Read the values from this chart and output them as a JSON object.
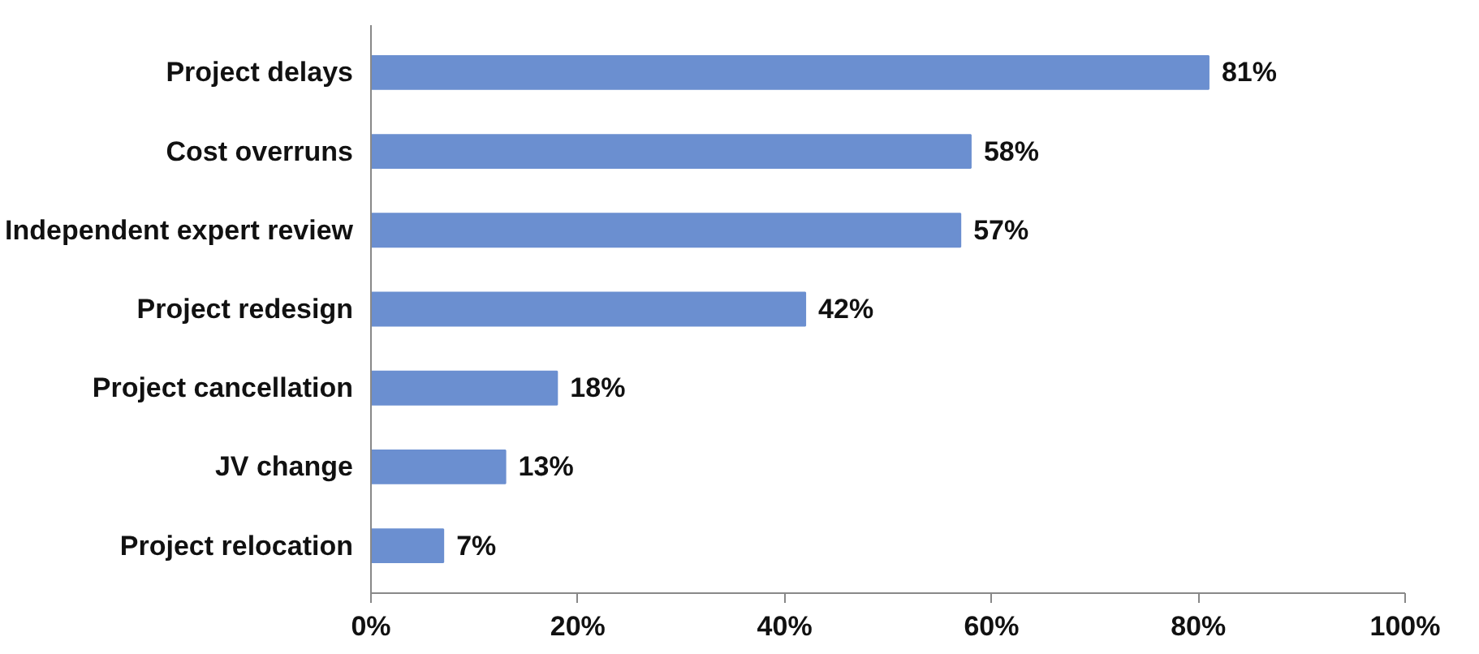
{
  "chart_data": {
    "type": "bar",
    "orientation": "horizontal",
    "categories": [
      "Project delays",
      "Cost overruns",
      "Independent expert review",
      "Project redesign",
      "Project cancellation",
      "JV change",
      "Project relocation"
    ],
    "values": [
      81,
      58,
      57,
      42,
      18,
      13,
      7
    ],
    "value_labels": [
      "81%",
      "58%",
      "57%",
      "42%",
      "18%",
      "13%",
      "7%"
    ],
    "color": "#6b8fd0",
    "xlim": [
      0,
      100
    ],
    "xticks": [
      {
        "value": 0,
        "label": "0%"
      },
      {
        "value": 20,
        "label": "20%"
      },
      {
        "value": 40,
        "label": "40%"
      },
      {
        "value": 60,
        "label": "60%"
      },
      {
        "value": 80,
        "label": "80%"
      },
      {
        "value": 100,
        "label": "100%"
      }
    ],
    "grid": false
  }
}
